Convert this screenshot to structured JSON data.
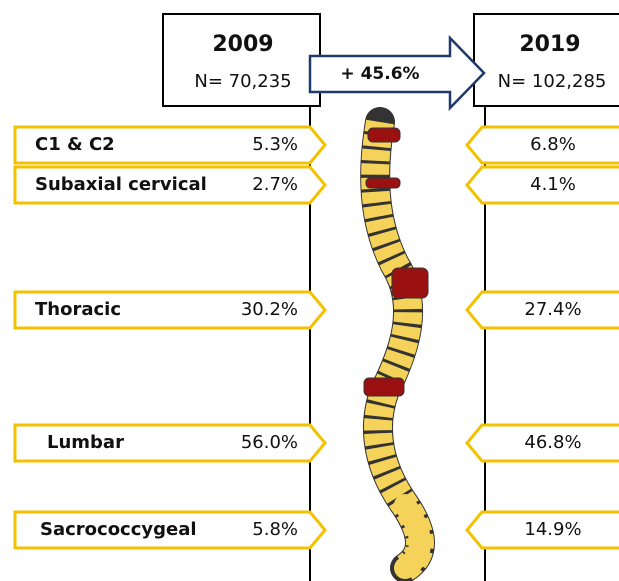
{
  "header": {
    "left": {
      "year": "2009",
      "count": "N= 70,235"
    },
    "right": {
      "year": "2019",
      "count": "N= 102,285"
    },
    "change": "+ 45.6%"
  },
  "regions": [
    {
      "label": "C1 & C2",
      "left": "5.3%",
      "right": "6.8%"
    },
    {
      "label": "Subaxial cervical",
      "left": "2.7%",
      "right": "4.1%"
    },
    {
      "label": "Thoracic",
      "left": "30.2%",
      "right": "27.4%"
    },
    {
      "label": "Lumbar",
      "left": "56.0%",
      "right": "46.8%"
    },
    {
      "label": "Sacrococcygeal",
      "left": "5.8%",
      "right": "14.9%"
    }
  ]
}
